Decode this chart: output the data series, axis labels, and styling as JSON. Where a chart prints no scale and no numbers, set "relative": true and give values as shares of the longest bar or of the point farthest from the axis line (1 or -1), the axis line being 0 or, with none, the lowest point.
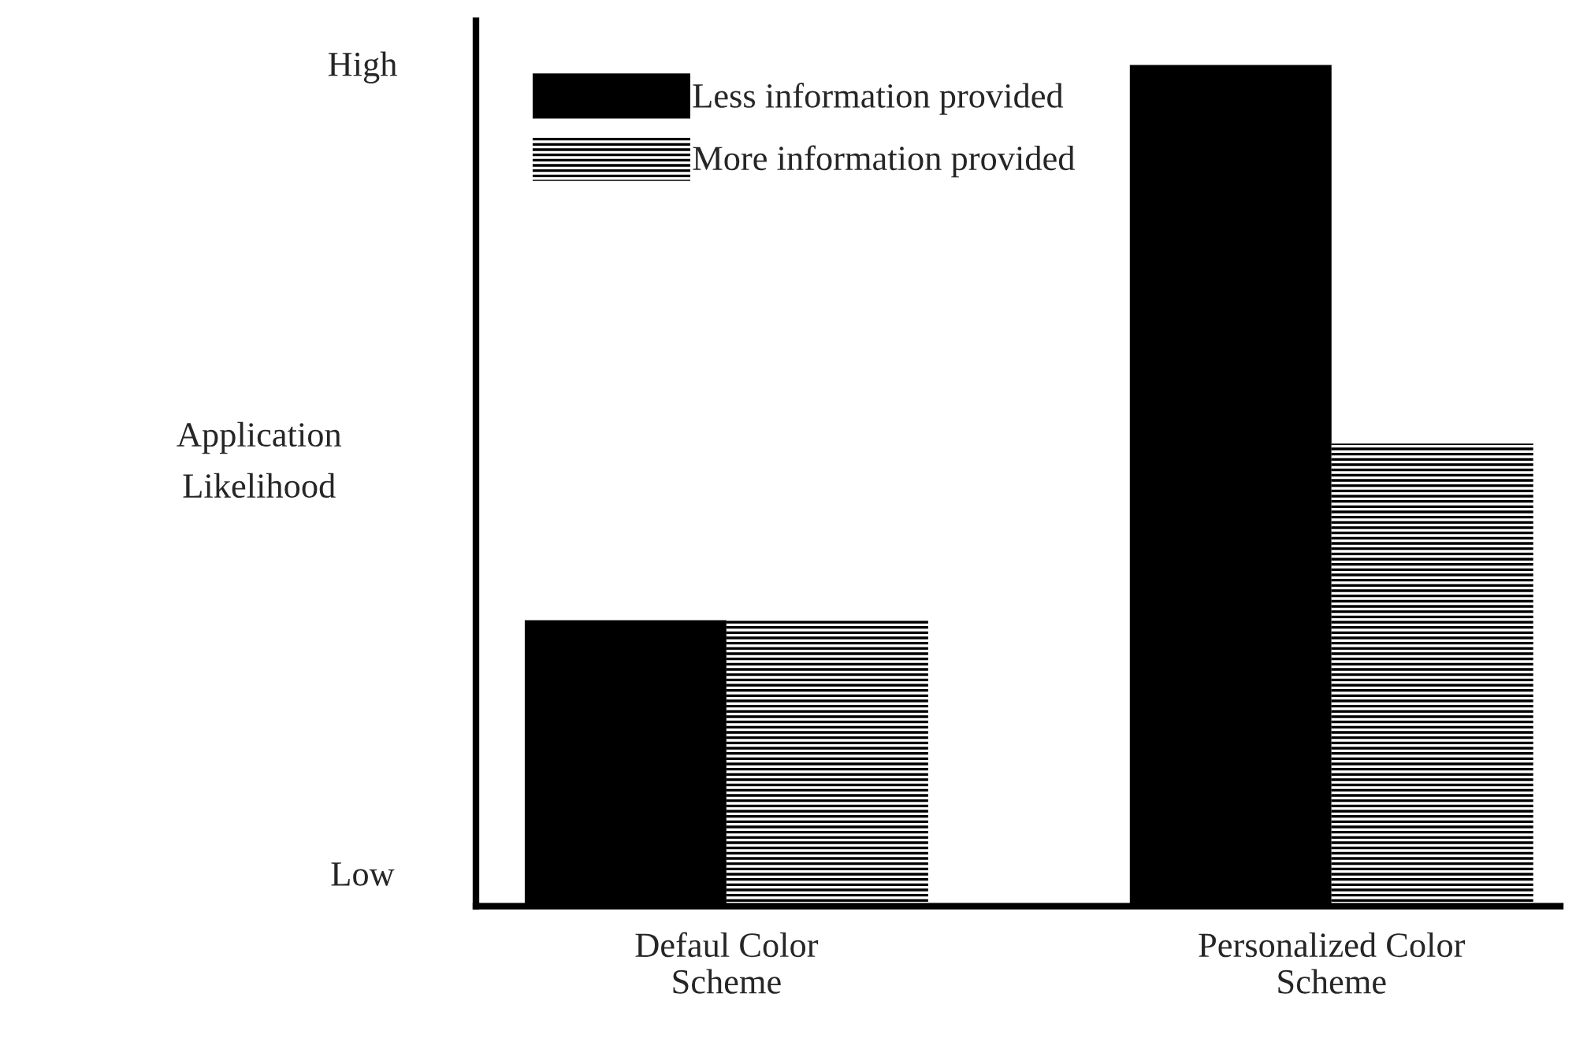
{
  "chart_data": {
    "type": "bar",
    "relative": true,
    "ylabel": "Application\nLikelihood",
    "categories": [
      "Defaul Color\nScheme",
      "Personalized Color\nScheme"
    ],
    "series": [
      {
        "name": "Less information provided",
        "color": "#000000",
        "values": [
          0.34,
          1
        ]
      },
      {
        "name": "More information provided",
        "color": "#ffffff",
        "values": [
          0.34,
          0.55
        ]
      }
    ],
    "annotations": [
      "High",
      "Low"
    ],
    "legend": "top left",
    "grid": false
  }
}
